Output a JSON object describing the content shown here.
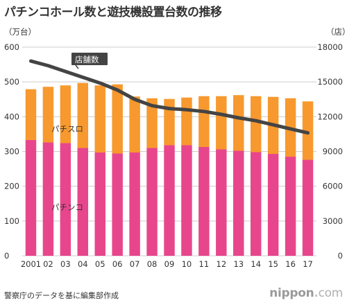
{
  "chart_data": {
    "type": "bar",
    "stacked": true,
    "title": "パチンコホール数と遊技機設置台数の推移",
    "categories": [
      "2001",
      "02",
      "03",
      "04",
      "05",
      "06",
      "07",
      "08",
      "09",
      "10",
      "11",
      "12",
      "13",
      "14",
      "15",
      "16",
      "17"
    ],
    "series": [
      {
        "name": "パチンコ",
        "axis": "left",
        "color": "#e8468c",
        "values": [
          333,
          326,
          324,
          310,
          297,
          294,
          297,
          310,
          318,
          318,
          313,
          306,
          302,
          298,
          293,
          285,
          276
        ]
      },
      {
        "name": "パチスロ",
        "axis": "left",
        "color": "#f7992e",
        "values": [
          146,
          160,
          166,
          187,
          193,
          199,
          161,
          143,
          133,
          137,
          146,
          153,
          160,
          161,
          164,
          168,
          168
        ]
      }
    ],
    "line": {
      "name": "店舗数",
      "axis": "right",
      "color": "#444444",
      "values": [
        16800,
        16400,
        15900,
        15400,
        14900,
        14300,
        13500,
        12950,
        12700,
        12600,
        12450,
        12200,
        11900,
        11650,
        11300,
        10950,
        10600
      ]
    },
    "y_left": {
      "unit": "（万台）",
      "min": 0,
      "max": 600,
      "ticks": [
        0,
        100,
        200,
        300,
        400,
        500,
        600
      ]
    },
    "y_right": {
      "unit": "（店）",
      "min": 0,
      "max": 18000,
      "ticks": [
        0,
        3000,
        6000,
        9000,
        12000,
        15000,
        18000
      ]
    },
    "grid": true,
    "labels": {
      "pachinko": "パチンコ",
      "pachislot": "パチスロ",
      "stores": "店舗数"
    }
  },
  "source": "警察庁のデータを基に編集部作成",
  "logo": {
    "brand": "nippon",
    "dot": ".",
    "tld": "com"
  },
  "colors": {
    "pachinko": "#e8468c",
    "pachislot": "#f7992e",
    "line": "#444444"
  }
}
